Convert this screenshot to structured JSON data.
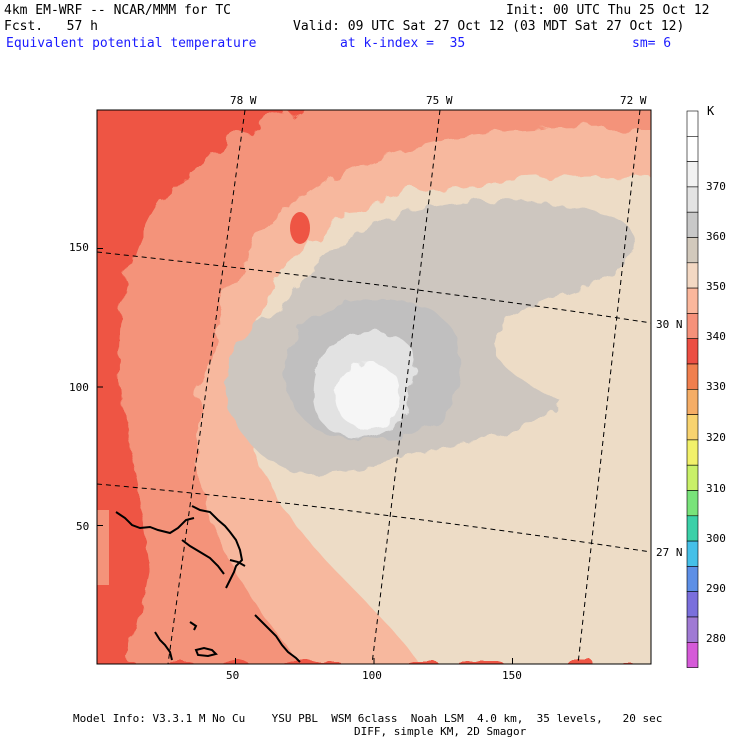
{
  "header": {
    "model_title": "4km EM-WRF -- NCAR/MMM for TC",
    "init": "Init: 00 UTC Thu 25 Oct 12",
    "forecast": "Fcst.   57 h",
    "valid": "Valid: 09 UTC Sat 27 Oct 12 (03 MDT Sat 27 Oct 12)",
    "field": "Equivalent potential temperature",
    "level": "at k-index =  35",
    "smoothing": "sm= 6"
  },
  "map": {
    "x_ticks": [
      "50",
      "100",
      "150"
    ],
    "x_tick_values": [
      50,
      100,
      150
    ],
    "y_ticks": [
      "50",
      "100",
      "150"
    ],
    "y_tick_values": [
      50,
      100,
      150
    ],
    "grid_extent": {
      "x": [
        0,
        200
      ],
      "y": [
        0,
        200
      ]
    },
    "lon_labels": [
      "78 W",
      "75 W",
      "72 W"
    ],
    "lat_labels": [
      "30 N",
      "27 N"
    ],
    "fill_colors": {
      "k340": "#ee5544",
      "k345": "#f4937a",
      "k350": "#f7b89e",
      "k355": "#eddcc6",
      "k360": "#cdc6bf",
      "k365": "#c0bfbf",
      "k370": "#e2e2e2",
      "k375": "#f6f6f6",
      "coast": "#000000"
    }
  },
  "legend": {
    "unit": "K",
    "labels": [
      "370",
      "360",
      "350",
      "340",
      "330",
      "320",
      "310",
      "300",
      "290",
      "280"
    ],
    "colors": [
      "#ffffff",
      "#ffffff",
      "#f2f2f2",
      "#e3e3e3",
      "#c8c8c8",
      "#d2c9bc",
      "#f3d8c3",
      "#fbb79c",
      "#f6917a",
      "#ec4e43",
      "#f07f4e",
      "#f5ad66",
      "#f8d36f",
      "#f2f16a",
      "#c9f068",
      "#79e37a",
      "#3bd0a8",
      "#45c0e8",
      "#5d8fe6",
      "#7a6fdc",
      "#a07ad4",
      "#d55ad8"
    ]
  },
  "footer": {
    "line1": "Model Info: V3.3.1 M No Cu    YSU PBL  WSM 6class  Noah LSM  4.0 km,  35 levels,   20 sec",
    "line2": "DIFF, simple KM, 2D Smagor"
  }
}
